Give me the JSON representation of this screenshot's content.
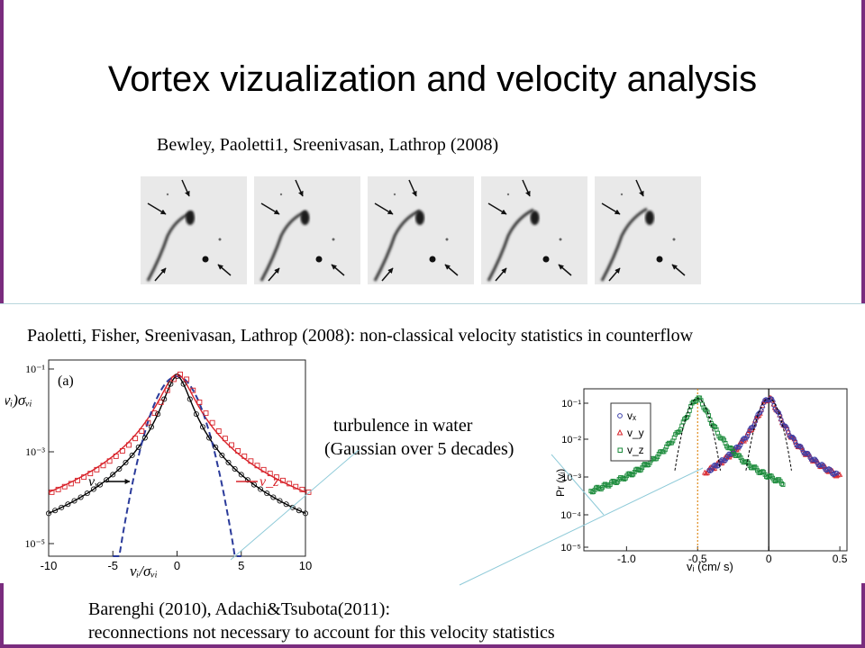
{
  "slide": {
    "title": "Vortex vizualization and velocity analysis",
    "citation_top": "Bewley, Paoletti1, Sreenivasan, Lathrop (2008)",
    "citation_middle": "Paoletti, Fisher, Sreenivasan, Lathrop (2008): non-classical velocity statistics in counterflow",
    "note_line1": "turbulence in water",
    "note_line2": "(Gaussian over 5 decades)",
    "citation_bottom_line1": "Barenghi (2010),  Adachi&Tsubota(2011):",
    "citation_bottom_line2": "reconnections not necessary to account for this velocity statistics",
    "accent_color": "#7a2c7e"
  },
  "chart_data": [
    {
      "type": "line",
      "panel_label": "(a)",
      "xlabel": "vᵢ/σᵥᵢ",
      "ylabel": "vᵢ)σᵥᵢ",
      "x_ticks": [
        "-10",
        "-5",
        "0",
        "5",
        "10"
      ],
      "y_ticks": [
        "10⁻¹",
        "10⁻³",
        "10⁻⁵"
      ],
      "xlim": [
        -10,
        10
      ],
      "series": [
        {
          "name": "vₓ",
          "color": "#000000"
        },
        {
          "name": "v_z",
          "color": "#d8232a"
        }
      ]
    },
    {
      "type": "scatter",
      "xlabel": "vᵢ (cm/ s)",
      "ylabel": "Pr (vᵢ)",
      "x_ticks": [
        "-1.0",
        "-0.5",
        "0",
        "0.5"
      ],
      "y_ticks": [
        "10⁻¹",
        "10⁻²",
        "10⁻³",
        "10⁻⁴",
        "10⁻⁵"
      ],
      "xlim": [
        -1.3,
        0.55
      ],
      "legend": [
        "vₓ",
        "v_y",
        "v_z"
      ],
      "legend_position": "top-left",
      "series": [
        {
          "name": "vₓ",
          "color": "#3b3fa8"
        },
        {
          "name": "v_y",
          "color": "#d8232a"
        },
        {
          "name": "v_z",
          "color": "#1a8a3a"
        }
      ]
    }
  ]
}
